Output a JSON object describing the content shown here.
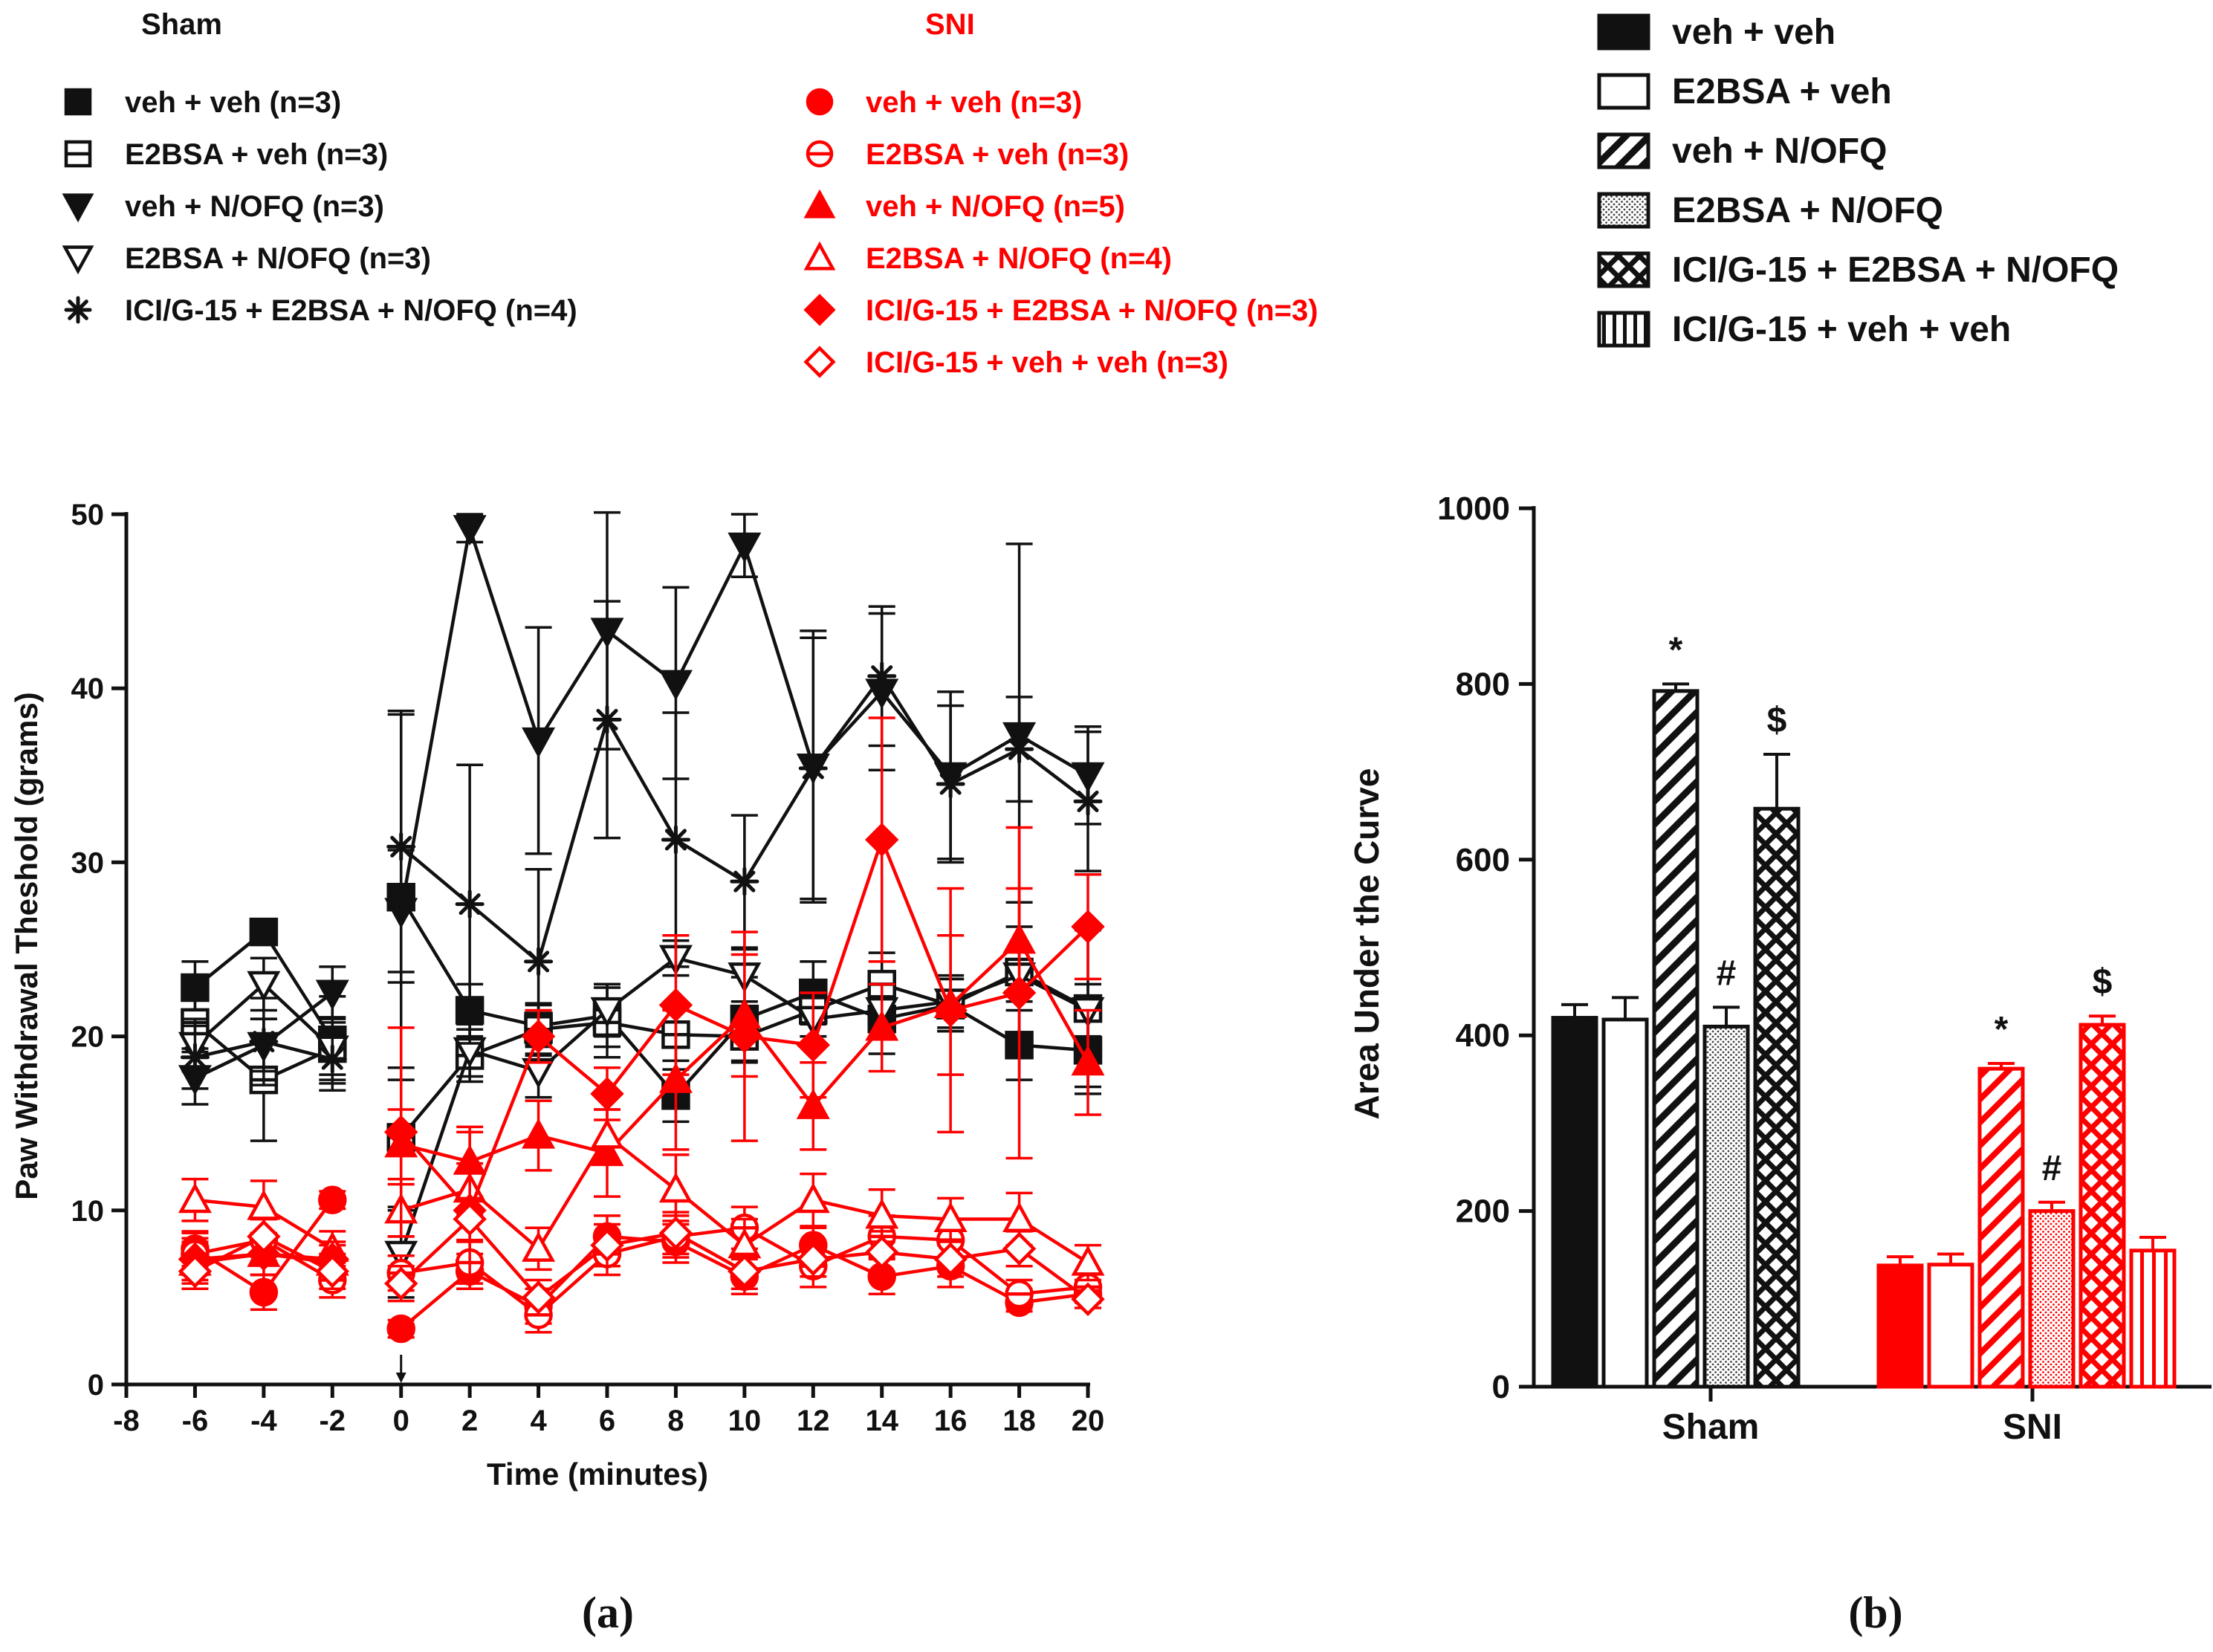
{
  "colors": {
    "sham": "#111111",
    "sni": "#ff0000"
  },
  "legend_a": {
    "sham_title": "Sham",
    "sni_title": "SNI",
    "sham_items": [
      {
        "label": "veh + veh (n=3)",
        "marker": "square-filled"
      },
      {
        "label": "E2BSA + veh (n=3)",
        "marker": "square-open"
      },
      {
        "label": "veh + N/OFQ (n=3)",
        "marker": "triangle-down-filled"
      },
      {
        "label": "E2BSA + N/OFQ (n=3)",
        "marker": "triangle-down-open"
      },
      {
        "label": "ICI/G-15 + E2BSA + N/OFQ (n=4)",
        "marker": "star"
      }
    ],
    "sni_items": [
      {
        "label": "veh + veh (n=3)",
        "marker": "circle-filled"
      },
      {
        "label": "E2BSA + veh (n=3)",
        "marker": "circle-open"
      },
      {
        "label": "veh + N/OFQ (n=5)",
        "marker": "triangle-up-filled"
      },
      {
        "label": "E2BSA + N/OFQ (n=4)",
        "marker": "triangle-up-open"
      },
      {
        "label": "ICI/G-15 + E2BSA + N/OFQ (n=3)",
        "marker": "diamond-filled"
      },
      {
        "label": "ICI/G-15 + veh + veh (n=3)",
        "marker": "diamond-open"
      }
    ]
  },
  "legend_b": [
    {
      "label": "veh + veh",
      "pattern": "solid"
    },
    {
      "label": "E2BSA + veh",
      "pattern": "open"
    },
    {
      "label": "veh + N/OFQ",
      "pattern": "diagonal"
    },
    {
      "label": "E2BSA + N/OFQ",
      "pattern": "dots"
    },
    {
      "label": "ICI/G-15 + E2BSA + N/OFQ",
      "pattern": "crosshatch"
    },
    {
      "label": "ICI/G-15 + veh + veh",
      "pattern": "vertical"
    }
  ],
  "panel_labels": {
    "a": "(a)",
    "b": "(b)"
  },
  "chart_data": [
    {
      "type": "line",
      "title": "",
      "xlabel": "Time (minutes)",
      "ylabel": "Paw Withdrawal Theshold (grams)",
      "xlim": [
        -8,
        20
      ],
      "ylim": [
        0,
        50
      ],
      "xticks": [
        -8,
        -6,
        -4,
        -2,
        0,
        2,
        4,
        6,
        8,
        10,
        12,
        14,
        16,
        18,
        20
      ],
      "yticks": [
        0,
        10,
        20,
        30,
        40,
        50
      ],
      "injection_marker_x": 0,
      "series": [
        {
          "name": "Sham veh + veh (n=3)",
          "group": "sham",
          "marker": "square-filled",
          "pre": {
            "x": [
              -6,
              -4,
              -2
            ],
            "y": [
              22.8,
              26,
              19.8
            ],
            "err": [
              1.5,
              0.3,
              2.5
            ]
          },
          "post": {
            "x": [
              0,
              2,
              4,
              6,
              8,
              10,
              12,
              14,
              16,
              18,
              20
            ],
            "y": [
              28,
              21.5,
              20.6,
              21.2,
              16.6,
              21,
              22.5,
              21,
              21.8,
              19.5,
              19.2
            ],
            "err": [
              10.5,
              1.5,
              1.2,
              1.8,
              1.5,
              2.4,
              1.8,
              2.0,
              1.5,
              2.0,
              2.5
            ]
          }
        },
        {
          "name": "Sham E2BSA + veh (n=3)",
          "group": "sham",
          "marker": "square-open",
          "pre": {
            "x": [
              -6,
              -4,
              -2
            ],
            "y": [
              20.8,
              17.5,
              19.3
            ],
            "err": [
              1.5,
              3.5,
              1.8
            ]
          },
          "post": {
            "x": [
              0,
              2,
              4,
              6,
              8,
              10,
              12,
              14,
              16,
              18,
              20
            ],
            "y": [
              14.2,
              18.9,
              20.4,
              20.8,
              20.1,
              20,
              21.5,
              23,
              21.8,
              23.7,
              21.6
            ],
            "err": [
              4,
              1.5,
              1.5,
              2.0,
              1.5,
              1.5,
              1.5,
              1.8,
              1.5,
              4.0,
              4.5
            ]
          }
        },
        {
          "name": "Sham veh + N/OFQ (n=3)",
          "group": "sham",
          "marker": "triangle-down-filled",
          "pre": {
            "x": [
              -6,
              -4,
              -2
            ],
            "y": [
              17.6,
              19.5,
              22.5
            ],
            "err": [
              1.5,
              1.5,
              1.5
            ]
          },
          "post": {
            "x": [
              0,
              2,
              4,
              6,
              8,
              10,
              12,
              14,
              16,
              18,
              20
            ],
            "y": [
              27.2,
              49.2,
              37,
              43.3,
              40.3,
              48.2,
              35.5,
              39.8,
              35,
              37.3,
              35
            ],
            "err": [
              3.5,
              0.8,
              6.5,
              6.8,
              5.5,
              1.8,
              7.8,
              4.5,
              4.8,
              11,
              2.8
            ]
          }
        },
        {
          "name": "Sham E2BSA + N/OFQ (n=3)",
          "group": "sham",
          "marker": "triangle-down-open",
          "pre": {
            "x": [
              -6,
              -4,
              -2
            ],
            "y": [
              19.5,
              23,
              19.3
            ],
            "err": [
              1.5,
              1.5,
              1.5
            ]
          },
          "post": {
            "x": [
              0,
              2,
              4,
              6,
              8,
              10,
              12,
              14,
              16,
              18,
              20
            ],
            "y": [
              7.5,
              19.2,
              18,
              21.5,
              24.5,
              23.5,
              21,
              21.5,
              22,
              23.5,
              21.5
            ],
            "err": [
              2.5,
              1.5,
              1.5,
              1.5,
              1.0,
              1.5,
              1.5,
              1.5,
              1.5,
              1.5,
              1.5
            ]
          }
        },
        {
          "name": "Sham ICI/G-15 + E2BSA + N/OFQ (n=4)",
          "group": "sham",
          "marker": "star",
          "pre": {
            "x": [
              -6,
              -4,
              -2
            ],
            "y": [
              18.8,
              19.7,
              18.7
            ],
            "err": [
              1.8,
              2.5,
              1.8
            ]
          },
          "post": {
            "x": [
              0,
              2,
              4,
              6,
              8,
              10,
              12,
              14,
              16,
              18,
              20
            ],
            "y": [
              30.9,
              27.6,
              24.3,
              38.2,
              31.3,
              28.9,
              35.4,
              40.7,
              34.5,
              36.5,
              33.5
            ],
            "err": [
              7.8,
              8.0,
              5.3,
              6.8,
              7.3,
              3.8,
              7.5,
              4.0,
              4.5,
              3.0,
              4.0
            ]
          }
        },
        {
          "name": "SNI veh + veh (n=3)",
          "group": "sni",
          "marker": "circle-filled",
          "pre": {
            "x": [
              -6,
              -4,
              -2
            ],
            "y": [
              7.8,
              5.3,
              10.6
            ],
            "err": [
              1.0,
              1.0,
              0.5
            ]
          },
          "post": {
            "x": [
              0,
              2,
              4,
              6,
              8,
              10,
              12,
              14,
              16,
              18,
              20
            ],
            "y": [
              3.2,
              6.5,
              4.5,
              8.5,
              8.2,
              6.2,
              8,
              6.2,
              6.8,
              4.7,
              5.2
            ],
            "err": [
              0.5,
              1.0,
              1.0,
              1.2,
              1.2,
              1.0,
              1.0,
              1.0,
              1.2,
              0.5,
              0.5
            ]
          }
        },
        {
          "name": "SNI E2BSA + veh (n=3)",
          "group": "sni",
          "marker": "circle-open",
          "pre": {
            "x": [
              -6,
              -4,
              -2
            ],
            "y": [
              7.5,
              8.3,
              6
            ],
            "err": [
              1.2,
              1.2,
              1.0
            ]
          },
          "post": {
            "x": [
              0,
              2,
              4,
              6,
              8,
              10,
              12,
              14,
              16,
              18,
              20
            ],
            "y": [
              6.4,
              7,
              4,
              7.5,
              8.5,
              9,
              6.8,
              8.5,
              8.3,
              5.2,
              5.6
            ],
            "err": [
              1.0,
              1.2,
              1.0,
              1.2,
              1.2,
              1.2,
              1.2,
              1.2,
              1.2,
              0.8,
              0.8
            ]
          }
        },
        {
          "name": "SNI veh + N/OFQ (n=5)",
          "group": "sni",
          "marker": "triangle-up-filled",
          "pre": {
            "x": [
              -6,
              -4,
              -2
            ],
            "y": [
              7,
              7.5,
              7
            ],
            "err": [
              1.2,
              1.2,
              1.0
            ]
          },
          "post": {
            "x": [
              0,
              2,
              4,
              6,
              8,
              10,
              12,
              14,
              16,
              18,
              20
            ],
            "y": [
              13.8,
              12.8,
              14.3,
              13.3,
              17.5,
              21.2,
              16,
              20.5,
              21.8,
              25.5,
              18.5
            ],
            "err": [
              2.0,
              2.0,
              2.0,
              2.5,
              4.0,
              3.5,
              2.5,
              2.5,
              4.0,
              3.0,
              3.0
            ]
          }
        },
        {
          "name": "SNI E2BSA + N/OFQ (n=4)",
          "group": "sni",
          "marker": "triangle-up-open",
          "pre": {
            "x": [
              -6,
              -4,
              -2
            ],
            "y": [
              10.6,
              10.2,
              7.8
            ],
            "err": [
              1.2,
              1.5,
              1.0
            ]
          },
          "post": {
            "x": [
              0,
              2,
              4,
              6,
              8,
              10,
              12,
              14,
              16,
              18,
              20
            ],
            "y": [
              10,
              11.2,
              7.8,
              14.3,
              11.2,
              8,
              10.6,
              9.7,
              9.5,
              9.5,
              7
            ],
            "err": [
              1.5,
              1.5,
              1.2,
              1.5,
              2.0,
              1.5,
              1.5,
              1.5,
              1.2,
              1.5,
              1.0
            ]
          }
        },
        {
          "name": "SNI ICI/G-15 + E2BSA + N/OFQ (n=3)",
          "group": "sni",
          "marker": "diamond-filled",
          "pre": {
            "x": [
              -6,
              -4,
              -2
            ],
            "y": [
              7.2,
              7.5,
              7.2
            ],
            "err": [
              1.2,
              1.2,
              1.0
            ]
          },
          "post": {
            "x": [
              0,
              2,
              4,
              6,
              8,
              10,
              12,
              14,
              16,
              18,
              20
            ],
            "y": [
              14.5,
              10,
              20,
              16.7,
              21.8,
              20,
              19.5,
              31.3,
              21.5,
              22.5,
              26.3
            ],
            "err": [
              6.0,
              4.5,
              1.5,
              1.5,
              4.0,
              6.0,
              3.0,
              7.0,
              7.0,
              9.5,
              3.0
            ]
          }
        },
        {
          "name": "SNI ICI/G-15 + veh + veh (n=3)",
          "group": "sni",
          "marker": "diamond-open",
          "pre": {
            "x": [
              -6,
              -4,
              -2
            ],
            "y": [
              6.5,
              8.5,
              6.5
            ],
            "err": [
              1.0,
              1.0,
              1.0
            ]
          },
          "post": {
            "x": [
              0,
              2,
              4,
              6,
              8,
              10,
              12,
              14,
              16,
              18,
              20
            ],
            "y": [
              5.8,
              9.5,
              5,
              8,
              8.7,
              6.5,
              7.2,
              7.6,
              7.2,
              7.8,
              4.9
            ],
            "err": [
              1.0,
              1.2,
              1.0,
              1.2,
              1.2,
              1.0,
              1.0,
              1.2,
              1.0,
              1.0,
              0.5
            ]
          }
        }
      ]
    },
    {
      "type": "bar",
      "title": "",
      "xlabel": "",
      "ylabel": "Area Under the Curve",
      "ylim": [
        0,
        1000
      ],
      "yticks": [
        0,
        200,
        400,
        600,
        800,
        1000
      ],
      "categories": [
        "Sham",
        "SNI"
      ],
      "series": [
        {
          "name": "veh + veh",
          "pattern": "solid",
          "values": [
            420,
            138
          ],
          "err": [
            15,
            10
          ]
        },
        {
          "name": "E2BSA + veh",
          "pattern": "open",
          "values": [
            418,
            139
          ],
          "err": [
            25,
            12
          ]
        },
        {
          "name": "veh + N/OFQ",
          "pattern": "diagonal",
          "values": [
            792,
            362
          ],
          "err": [
            8,
            6
          ]
        },
        {
          "name": "E2BSA + N/OFQ",
          "pattern": "dots",
          "values": [
            410,
            200
          ],
          "err": [
            22,
            10
          ]
        },
        {
          "name": "ICI/G-15 + E2BSA + N/OFQ",
          "pattern": "crosshatch",
          "values": [
            658,
            412
          ],
          "err": [
            62,
            10
          ]
        },
        {
          "name": "ICI/G-15 + veh + veh",
          "pattern": "vertical",
          "values": [
            null,
            155
          ],
          "err": [
            null,
            15
          ]
        }
      ],
      "annotations": [
        {
          "category": "Sham",
          "series": "veh + N/OFQ",
          "text": "*"
        },
        {
          "category": "Sham",
          "series": "E2BSA + N/OFQ",
          "text": "#"
        },
        {
          "category": "Sham",
          "series": "ICI/G-15 + E2BSA + N/OFQ",
          "text": "$"
        },
        {
          "category": "SNI",
          "series": "veh + N/OFQ",
          "text": "*"
        },
        {
          "category": "SNI",
          "series": "E2BSA + N/OFQ",
          "text": "#"
        },
        {
          "category": "SNI",
          "series": "ICI/G-15 + E2BSA + N/OFQ",
          "text": "$"
        }
      ]
    }
  ]
}
